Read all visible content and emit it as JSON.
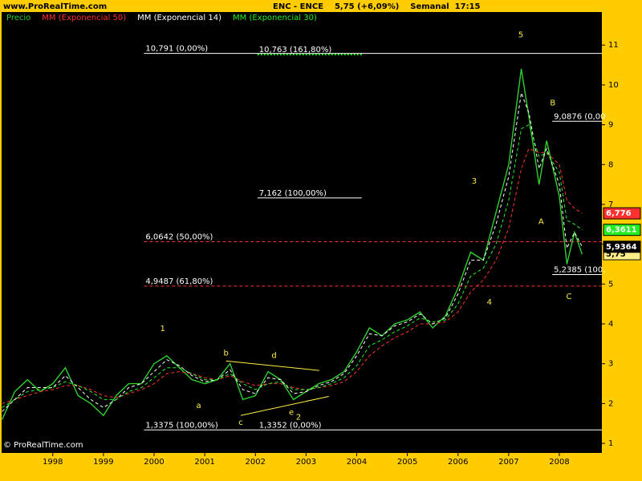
{
  "chart_data": {
    "type": "line",
    "site": "www.ProRealTime.com",
    "title": "ENC - ENCE    5,75 (+6,09%)    Semanal  17:15",
    "copyright": "© ProRealTime.com",
    "xlim": [
      1996.99,
      2008.84
    ],
    "xticks": [
      1998,
      1999,
      2000,
      2001,
      2002,
      2003,
      2004,
      2005,
      2006,
      2007,
      2008
    ],
    "ylim": [
      0.76,
      11.83
    ],
    "yticks": [
      1,
      2,
      3,
      4,
      5,
      6,
      7,
      8,
      9,
      10,
      11
    ],
    "x": [
      1997.0,
      1997.25,
      1997.5,
      1997.75,
      1998.0,
      1998.25,
      1998.5,
      1998.75,
      1999.0,
      1999.25,
      1999.5,
      1999.75,
      2000.0,
      2000.25,
      2000.5,
      2000.75,
      2001.0,
      2001.25,
      2001.5,
      2001.75,
      2002.0,
      2002.25,
      2002.5,
      2002.75,
      2003.0,
      2003.25,
      2003.5,
      2003.75,
      2004.0,
      2004.25,
      2004.5,
      2004.75,
      2005.0,
      2005.25,
      2005.5,
      2005.75,
      2006.0,
      2006.25,
      2006.5,
      2006.75,
      2007.0,
      2007.25,
      2007.4,
      2007.6,
      2007.75,
      2008.0,
      2008.15,
      2008.3,
      2008.45
    ],
    "series": [
      {
        "name": "Precio",
        "color": "#2fcf2f",
        "dash": false,
        "last_label": "5,75",
        "values": [
          1.6,
          2.3,
          2.6,
          2.3,
          2.5,
          2.9,
          2.2,
          2.0,
          1.7,
          2.2,
          2.5,
          2.5,
          3.0,
          3.2,
          2.9,
          2.6,
          2.5,
          2.6,
          3.0,
          2.1,
          2.2,
          2.8,
          2.6,
          2.1,
          2.3,
          2.5,
          2.6,
          2.8,
          3.3,
          3.9,
          3.7,
          4.0,
          4.1,
          4.3,
          3.9,
          4.2,
          4.9,
          5.8,
          5.6,
          6.8,
          8.0,
          10.4,
          9.2,
          7.5,
          8.6,
          7.2,
          5.5,
          6.3,
          5.75
        ]
      },
      {
        "name": "MM (Exponencial 50)",
        "color": "#ff3030",
        "dash": true,
        "last_label": "6,776",
        "values": [
          2.0,
          2.1,
          2.2,
          2.3,
          2.35,
          2.45,
          2.45,
          2.35,
          2.2,
          2.15,
          2.25,
          2.35,
          2.5,
          2.75,
          2.8,
          2.75,
          2.65,
          2.6,
          2.7,
          2.55,
          2.45,
          2.5,
          2.5,
          2.4,
          2.35,
          2.4,
          2.45,
          2.55,
          2.8,
          3.2,
          3.45,
          3.65,
          3.8,
          4.0,
          4.0,
          4.05,
          4.3,
          4.8,
          5.1,
          5.6,
          6.4,
          7.9,
          8.4,
          8.3,
          8.3,
          8.0,
          7.1,
          6.9,
          6.776
        ]
      },
      {
        "name": "MM (Exponencial 14)",
        "color": "#ffffff",
        "dash": true,
        "last_label": "5,9364",
        "values": [
          1.8,
          2.1,
          2.4,
          2.4,
          2.4,
          2.7,
          2.4,
          2.1,
          1.9,
          2.1,
          2.4,
          2.5,
          2.8,
          3.1,
          2.95,
          2.7,
          2.55,
          2.6,
          2.85,
          2.35,
          2.25,
          2.65,
          2.6,
          2.25,
          2.3,
          2.45,
          2.55,
          2.75,
          3.2,
          3.75,
          3.7,
          3.95,
          4.05,
          4.25,
          4.0,
          4.15,
          4.75,
          5.6,
          5.6,
          6.5,
          7.7,
          9.8,
          9.3,
          7.9,
          8.4,
          7.5,
          5.9,
          6.3,
          5.9364
        ]
      },
      {
        "name": "MM (Exponencial 30)",
        "color": "#22ee22",
        "dash": true,
        "last_label": "6,3611",
        "values": [
          1.9,
          2.1,
          2.3,
          2.35,
          2.4,
          2.55,
          2.45,
          2.3,
          2.1,
          2.1,
          2.3,
          2.4,
          2.65,
          2.9,
          2.9,
          2.75,
          2.6,
          2.6,
          2.75,
          2.5,
          2.35,
          2.5,
          2.55,
          2.35,
          2.35,
          2.4,
          2.5,
          2.65,
          2.95,
          3.45,
          3.6,
          3.8,
          3.95,
          4.15,
          4.05,
          4.1,
          4.5,
          5.2,
          5.4,
          6.0,
          7.1,
          8.9,
          9.0,
          8.2,
          8.3,
          7.8,
          6.6,
          6.5,
          6.3611
        ]
      }
    ],
    "levels": [
      {
        "value": 10.791,
        "label": "10,791 (0,00%)",
        "x": [
          1999.8,
          2008.84
        ],
        "color": "#ffffff",
        "style": "solid"
      },
      {
        "value": 10.763,
        "label": "10,763 (161,80%)",
        "x": [
          2002.04,
          2004.1
        ],
        "color": "#22ee22",
        "style": "dotted"
      },
      {
        "value": 7.162,
        "label": "7,162 (100,00%)",
        "x": [
          2002.04,
          2004.1
        ],
        "color": "#ffffff",
        "style": "solid"
      },
      {
        "value": 6.0642,
        "label": "6,0642 (50,00%)",
        "x": [
          1999.8,
          2008.84
        ],
        "color": "#ff3030",
        "style": "dashed"
      },
      {
        "value": 4.9487,
        "label": "4,9487 (61,80%)",
        "x": [
          1999.8,
          2008.84
        ],
        "color": "#ff3030",
        "style": "dashed"
      },
      {
        "value": 1.3375,
        "label": "1,3375 (100,00%)",
        "x": [
          1999.8,
          2008.84
        ],
        "color": "#ffffff",
        "style": "solid"
      },
      {
        "value": 1.3352,
        "label": "1,3352 (0,00%)",
        "x": [
          2002.04,
          2002.04
        ],
        "color": "#ffffff",
        "style": "none"
      },
      {
        "value": 9.0876,
        "label": "9,0876 (0,00",
        "x": [
          2007.86,
          2008.84
        ],
        "color": "#ffffff",
        "style": "solid"
      },
      {
        "value": 5.2385,
        "label": "5,2385 (100,",
        "x": [
          2007.86,
          2008.84
        ],
        "color": "#ffffff",
        "style": "solid"
      }
    ],
    "trendlines": [
      {
        "x": [
          2001.42,
          2003.26
        ],
        "y": [
          3.07,
          2.83
        ]
      },
      {
        "x": [
          2001.71,
          2003.45
        ],
        "y": [
          1.7,
          2.18
        ]
      }
    ],
    "annotations": [
      {
        "text": "1",
        "x": 2000.17,
        "y": 3.88
      },
      {
        "text": "a",
        "x": 2000.88,
        "y": 1.95
      },
      {
        "text": "b",
        "x": 2001.42,
        "y": 3.27
      },
      {
        "text": "c",
        "x": 2001.71,
        "y": 1.52
      },
      {
        "text": "d",
        "x": 2002.37,
        "y": 3.21
      },
      {
        "text": "e",
        "x": 2002.71,
        "y": 1.78
      },
      {
        "text": "2",
        "x": 2002.85,
        "y": 1.66
      },
      {
        "text": "3",
        "x": 2006.32,
        "y": 7.58
      },
      {
        "text": "4",
        "x": 2006.62,
        "y": 4.54
      },
      {
        "text": "5",
        "x": 2007.24,
        "y": 11.26
      },
      {
        "text": "B",
        "x": 2007.87,
        "y": 9.55
      },
      {
        "text": "A",
        "x": 2007.64,
        "y": 6.57
      },
      {
        "text": "C",
        "x": 2008.19,
        "y": 4.68
      }
    ],
    "annotation_color": "#ffee44"
  }
}
